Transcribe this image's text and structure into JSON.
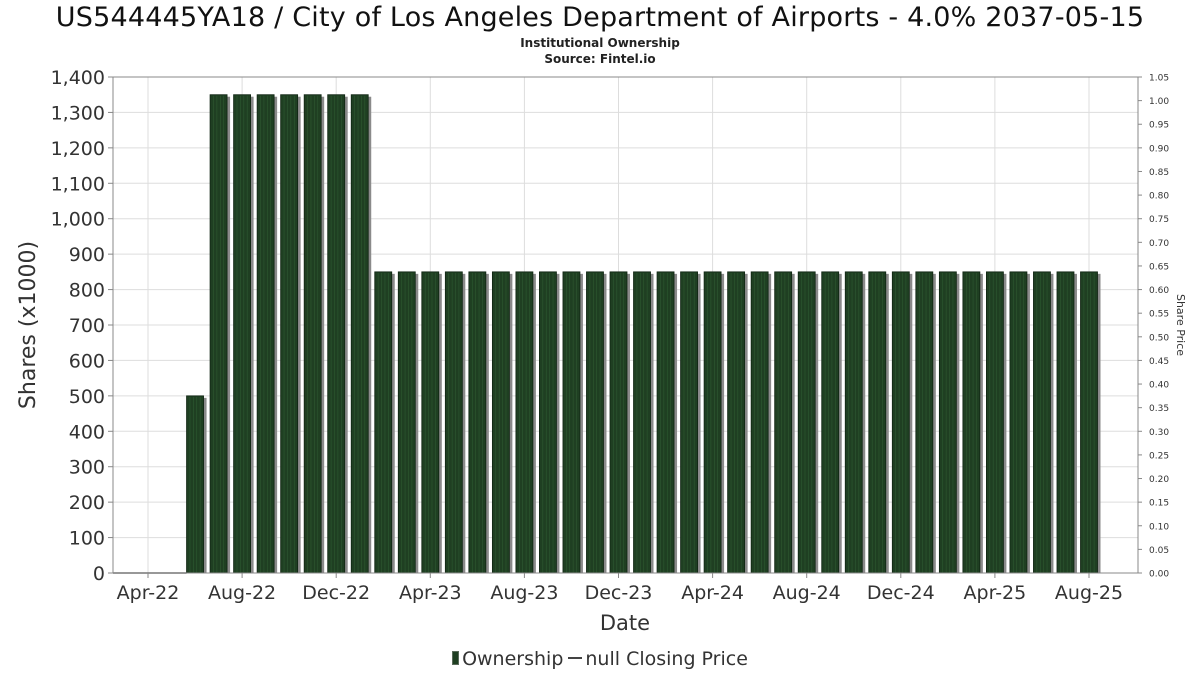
{
  "header": {
    "title": "US544445YA18 / City of Los Angeles Department of Airports - 4.0% 2037-05-15",
    "subtitle_1": "Institutional Ownership",
    "subtitle_2": "Source: Fintel.io"
  },
  "legend": {
    "ownership_label": "Ownership",
    "price_label": "null Closing Price"
  },
  "colors": {
    "bar": "#1f3f22",
    "bar_shadow": "#8a8a8a",
    "grid": "#dddddd",
    "axis": "#888888"
  },
  "chart_data": {
    "type": "bar",
    "xlabel": "Date",
    "ylabel": "Shares (x1000)",
    "y2label": "Share Price",
    "ylim": [
      0,
      1400
    ],
    "y2lim": [
      0,
      1.05
    ],
    "y_ticks": [
      "0",
      "100",
      "200",
      "300",
      "400",
      "500",
      "600",
      "700",
      "800",
      "900",
      "1,000",
      "1,100",
      "1,200",
      "1,300",
      "1,400"
    ],
    "y2_ticks": [
      "0.00",
      "0.05",
      "0.10",
      "0.15",
      "0.20",
      "0.25",
      "0.30",
      "0.35",
      "0.40",
      "0.45",
      "0.50",
      "0.55",
      "0.60",
      "0.65",
      "0.70",
      "0.75",
      "0.80",
      "0.85",
      "0.90",
      "0.95",
      "1.00",
      "1.05"
    ],
    "x_ticks": [
      "Apr-22",
      "Aug-22",
      "Dec-22",
      "Apr-23",
      "Aug-23",
      "Dec-23",
      "Apr-24",
      "Aug-24",
      "Dec-24",
      "Apr-25",
      "Aug-25"
    ],
    "categories": [
      "Jun-22",
      "Jul-22",
      "Aug-22",
      "Sep-22",
      "Oct-22",
      "Nov-22",
      "Dec-22",
      "Jan-23",
      "Feb-23",
      "Mar-23",
      "Apr-23",
      "May-23",
      "Jun-23",
      "Jul-23",
      "Aug-23",
      "Sep-23",
      "Oct-23",
      "Nov-23",
      "Dec-23",
      "Jan-24",
      "Feb-24",
      "Mar-24",
      "Apr-24",
      "May-24",
      "Jun-24",
      "Jul-24",
      "Aug-24",
      "Sep-24",
      "Oct-24",
      "Nov-24",
      "Dec-24",
      "Jan-25",
      "Feb-25",
      "Mar-25",
      "Apr-25",
      "May-25",
      "Jun-25",
      "Jul-25",
      "Aug-25"
    ],
    "series": [
      {
        "name": "Ownership",
        "values": [
          500,
          1350,
          1350,
          1350,
          1350,
          1350,
          1350,
          1350,
          850,
          850,
          850,
          850,
          850,
          850,
          850,
          850,
          850,
          850,
          850,
          850,
          850,
          850,
          850,
          850,
          850,
          850,
          850,
          850,
          850,
          850,
          850,
          850,
          850,
          850,
          850,
          850,
          850,
          850,
          850
        ]
      }
    ],
    "grid": true,
    "legend_position": "bottom"
  }
}
